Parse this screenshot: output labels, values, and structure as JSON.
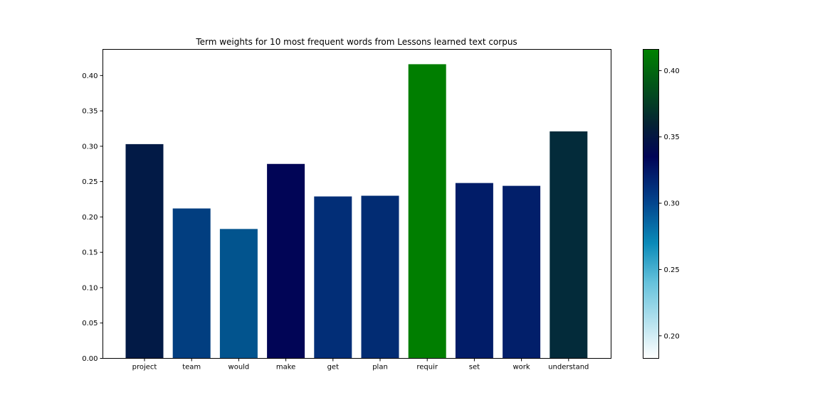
{
  "chart_data": {
    "type": "bar",
    "title": "Term weights for 10 most frequent words from Lessons learned text corpus",
    "xlabel": "",
    "ylabel": "",
    "categories": [
      "project",
      "team",
      "would",
      "make",
      "get",
      "plan",
      "requir",
      "set",
      "work",
      "understand"
    ],
    "values": [
      0.303,
      0.212,
      0.183,
      0.275,
      0.229,
      0.23,
      0.416,
      0.248,
      0.244,
      0.321
    ],
    "bar_colors": [
      "#021a46",
      "#023e80",
      "#02548e",
      "#010556",
      "#022e77",
      "#022c73",
      "#007e00",
      "#011c68",
      "#021f6a",
      "#032b3a"
    ],
    "ylim": [
      0,
      0.437
    ],
    "yticks": [
      0.0,
      0.05,
      0.1,
      0.15,
      0.2,
      0.25,
      0.3,
      0.35,
      0.4
    ],
    "ytick_labels": [
      "0.00",
      "0.05",
      "0.10",
      "0.15",
      "0.20",
      "0.25",
      "0.30",
      "0.35",
      "0.40"
    ],
    "grid": false,
    "colorbar": {
      "colormap": "ocean_r",
      "range": [
        0.183,
        0.416
      ],
      "ticks": [
        0.2,
        0.25,
        0.3,
        0.35,
        0.4
      ],
      "tick_labels": [
        "0.20",
        "0.25",
        "0.30",
        "0.35",
        "0.40"
      ],
      "gradient_stops": [
        {
          "value": 0.183,
          "color": "#ffffff"
        },
        {
          "value": 0.24,
          "color": "#66c2dc"
        },
        {
          "value": 0.27,
          "color": "#0a8ab8"
        },
        {
          "value": 0.3,
          "color": "#03468e"
        },
        {
          "value": 0.335,
          "color": "#010456"
        },
        {
          "value": 0.36,
          "color": "#052333"
        },
        {
          "value": 0.416,
          "color": "#008200"
        }
      ]
    }
  }
}
